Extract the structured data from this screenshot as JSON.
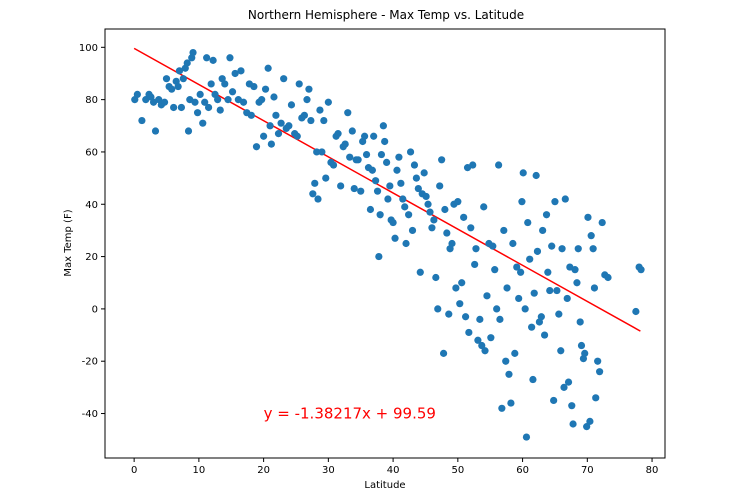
{
  "chart_data": {
    "type": "scatter",
    "title": "Northern Hemisphere - Max Temp vs. Latitude",
    "xlabel": "Latitude",
    "ylabel": "Max Temp (F)",
    "xlim": [
      -4.5,
      82
    ],
    "ylim": [
      -57,
      107
    ],
    "xticks": [
      0,
      10,
      20,
      30,
      40,
      50,
      60,
      70,
      80
    ],
    "yticks": [
      -40,
      -20,
      0,
      20,
      40,
      60,
      80,
      100
    ],
    "grid": false,
    "marker_color": "#1f77b4",
    "regression": {
      "slope": -1.38217,
      "intercept": 99.59,
      "x_range": [
        0,
        78.2
      ],
      "color": "#ff0000",
      "equation_label": "y = -1.38217x + 99.59",
      "label_x": 20,
      "label_y": -40
    },
    "points": [
      [
        0.1,
        80
      ],
      [
        0.5,
        82
      ],
      [
        1.2,
        72
      ],
      [
        1.8,
        80
      ],
      [
        2.3,
        82
      ],
      [
        2.6,
        81
      ],
      [
        3.0,
        79
      ],
      [
        3.3,
        68
      ],
      [
        3.8,
        80
      ],
      [
        4.2,
        78
      ],
      [
        4.7,
        79
      ],
      [
        5.0,
        88
      ],
      [
        5.4,
        85
      ],
      [
        5.8,
        84
      ],
      [
        6.1,
        77
      ],
      [
        6.5,
        87
      ],
      [
        6.8,
        85
      ],
      [
        7.0,
        91
      ],
      [
        7.3,
        77
      ],
      [
        7.6,
        88
      ],
      [
        7.9,
        92
      ],
      [
        8.2,
        94
      ],
      [
        8.4,
        68
      ],
      [
        8.6,
        80
      ],
      [
        8.9,
        96
      ],
      [
        9.1,
        98
      ],
      [
        9.4,
        79
      ],
      [
        9.8,
        75
      ],
      [
        10.2,
        82
      ],
      [
        10.6,
        71
      ],
      [
        10.9,
        79
      ],
      [
        11.2,
        96
      ],
      [
        11.5,
        77
      ],
      [
        11.9,
        86
      ],
      [
        12.2,
        95
      ],
      [
        12.5,
        82
      ],
      [
        12.9,
        80
      ],
      [
        13.3,
        76
      ],
      [
        13.6,
        88
      ],
      [
        14.0,
        86
      ],
      [
        14.5,
        80
      ],
      [
        14.8,
        96
      ],
      [
        15.2,
        83
      ],
      [
        15.6,
        90
      ],
      [
        16.1,
        80
      ],
      [
        16.5,
        91
      ],
      [
        16.9,
        79
      ],
      [
        17.4,
        75
      ],
      [
        17.8,
        86
      ],
      [
        18.1,
        74
      ],
      [
        18.5,
        85
      ],
      [
        18.9,
        62
      ],
      [
        19.3,
        79
      ],
      [
        19.7,
        80
      ],
      [
        20.0,
        66
      ],
      [
        20.3,
        84
      ],
      [
        20.7,
        92
      ],
      [
        21.0,
        70
      ],
      [
        21.2,
        63
      ],
      [
        21.6,
        81
      ],
      [
        21.9,
        74
      ],
      [
        22.3,
        67
      ],
      [
        22.7,
        71
      ],
      [
        23.1,
        88
      ],
      [
        23.5,
        69
      ],
      [
        23.9,
        70
      ],
      [
        24.3,
        78
      ],
      [
        24.8,
        67
      ],
      [
        25.2,
        66
      ],
      [
        25.5,
        86
      ],
      [
        25.9,
        73
      ],
      [
        26.3,
        74
      ],
      [
        26.7,
        80
      ],
      [
        27.0,
        84
      ],
      [
        27.3,
        72
      ],
      [
        27.6,
        44
      ],
      [
        27.9,
        48
      ],
      [
        28.2,
        60
      ],
      [
        28.4,
        42
      ],
      [
        28.7,
        76
      ],
      [
        29.0,
        60
      ],
      [
        29.3,
        72
      ],
      [
        29.6,
        50
      ],
      [
        30.0,
        79
      ],
      [
        30.4,
        56
      ],
      [
        30.8,
        55
      ],
      [
        31.2,
        66
      ],
      [
        31.5,
        67
      ],
      [
        31.9,
        47
      ],
      [
        32.3,
        62
      ],
      [
        32.6,
        63
      ],
      [
        33.0,
        75
      ],
      [
        33.3,
        58
      ],
      [
        33.7,
        68
      ],
      [
        34.0,
        46
      ],
      [
        34.3,
        57
      ],
      [
        34.6,
        57
      ],
      [
        35.0,
        45
      ],
      [
        35.3,
        64
      ],
      [
        35.6,
        66
      ],
      [
        35.9,
        59
      ],
      [
        36.2,
        54
      ],
      [
        36.5,
        38
      ],
      [
        36.8,
        53
      ],
      [
        37.0,
        66
      ],
      [
        37.3,
        49
      ],
      [
        37.6,
        45
      ],
      [
        37.8,
        20
      ],
      [
        38.0,
        36
      ],
      [
        38.2,
        59
      ],
      [
        38.5,
        70
      ],
      [
        38.7,
        64
      ],
      [
        39.0,
        56
      ],
      [
        39.2,
        42
      ],
      [
        39.5,
        47
      ],
      [
        39.7,
        34
      ],
      [
        40.0,
        33
      ],
      [
        40.3,
        27
      ],
      [
        40.6,
        53
      ],
      [
        40.9,
        58
      ],
      [
        41.2,
        48
      ],
      [
        41.5,
        42
      ],
      [
        41.8,
        39
      ],
      [
        42.0,
        25
      ],
      [
        42.4,
        36
      ],
      [
        42.7,
        60
      ],
      [
        43.0,
        30
      ],
      [
        43.3,
        55
      ],
      [
        43.6,
        50
      ],
      [
        43.9,
        46
      ],
      [
        44.2,
        14
      ],
      [
        44.5,
        44
      ],
      [
        44.8,
        52
      ],
      [
        45.1,
        43
      ],
      [
        45.4,
        40
      ],
      [
        45.7,
        37
      ],
      [
        46.0,
        31
      ],
      [
        46.3,
        34
      ],
      [
        46.6,
        12
      ],
      [
        46.9,
        0
      ],
      [
        47.2,
        47
      ],
      [
        47.5,
        57
      ],
      [
        47.8,
        -17
      ],
      [
        48.0,
        38
      ],
      [
        48.3,
        29
      ],
      [
        48.6,
        -2
      ],
      [
        48.8,
        23
      ],
      [
        49.1,
        25
      ],
      [
        49.4,
        40
      ],
      [
        49.7,
        8
      ],
      [
        50.0,
        41
      ],
      [
        50.3,
        2
      ],
      [
        50.6,
        10
      ],
      [
        50.9,
        35
      ],
      [
        51.2,
        -3
      ],
      [
        51.5,
        54
      ],
      [
        51.7,
        -9
      ],
      [
        52.0,
        31
      ],
      [
        52.3,
        55
      ],
      [
        52.6,
        17
      ],
      [
        52.8,
        23
      ],
      [
        53.1,
        -12
      ],
      [
        53.4,
        -4
      ],
      [
        53.7,
        -14
      ],
      [
        54.0,
        39
      ],
      [
        54.2,
        -16
      ],
      [
        54.5,
        5
      ],
      [
        54.8,
        25
      ],
      [
        55.1,
        -11
      ],
      [
        55.4,
        24
      ],
      [
        55.7,
        15
      ],
      [
        56.0,
        0
      ],
      [
        56.3,
        55
      ],
      [
        56.5,
        -4
      ],
      [
        56.8,
        -38
      ],
      [
        57.1,
        30
      ],
      [
        57.4,
        -20
      ],
      [
        57.6,
        8
      ],
      [
        57.9,
        -25
      ],
      [
        58.2,
        -36
      ],
      [
        58.5,
        25
      ],
      [
        58.8,
        -17
      ],
      [
        59.1,
        16
      ],
      [
        59.4,
        4
      ],
      [
        59.7,
        14
      ],
      [
        59.9,
        41
      ],
      [
        60.1,
        52
      ],
      [
        60.4,
        0
      ],
      [
        60.6,
        -49
      ],
      [
        60.8,
        33
      ],
      [
        61.1,
        19
      ],
      [
        61.4,
        -7
      ],
      [
        61.6,
        -27
      ],
      [
        61.8,
        6
      ],
      [
        62.1,
        51
      ],
      [
        62.3,
        22
      ],
      [
        62.6,
        -5
      ],
      [
        62.9,
        -3
      ],
      [
        63.1,
        30
      ],
      [
        63.4,
        -10
      ],
      [
        63.7,
        36
      ],
      [
        63.9,
        14
      ],
      [
        64.2,
        7
      ],
      [
        64.5,
        24
      ],
      [
        64.8,
        -35
      ],
      [
        65.0,
        41
      ],
      [
        65.3,
        7
      ],
      [
        65.6,
        -2
      ],
      [
        65.9,
        -16
      ],
      [
        66.1,
        23
      ],
      [
        66.4,
        -30
      ],
      [
        66.6,
        42
      ],
      [
        66.9,
        4
      ],
      [
        67.1,
        -28
      ],
      [
        67.3,
        16
      ],
      [
        67.6,
        -37
      ],
      [
        67.8,
        -44
      ],
      [
        68.1,
        15
      ],
      [
        68.4,
        10
      ],
      [
        68.6,
        23
      ],
      [
        68.9,
        -5
      ],
      [
        69.1,
        -14
      ],
      [
        69.4,
        -19
      ],
      [
        69.6,
        -17
      ],
      [
        69.9,
        -45
      ],
      [
        70.1,
        35
      ],
      [
        70.4,
        -43
      ],
      [
        70.6,
        28
      ],
      [
        70.9,
        23
      ],
      [
        71.1,
        8
      ],
      [
        71.3,
        -34
      ],
      [
        71.6,
        -20
      ],
      [
        71.9,
        -24
      ],
      [
        72.3,
        33
      ],
      [
        72.7,
        13
      ],
      [
        73.2,
        12
      ],
      [
        77.5,
        -1
      ],
      [
        78.0,
        16
      ],
      [
        78.3,
        15
      ]
    ]
  }
}
